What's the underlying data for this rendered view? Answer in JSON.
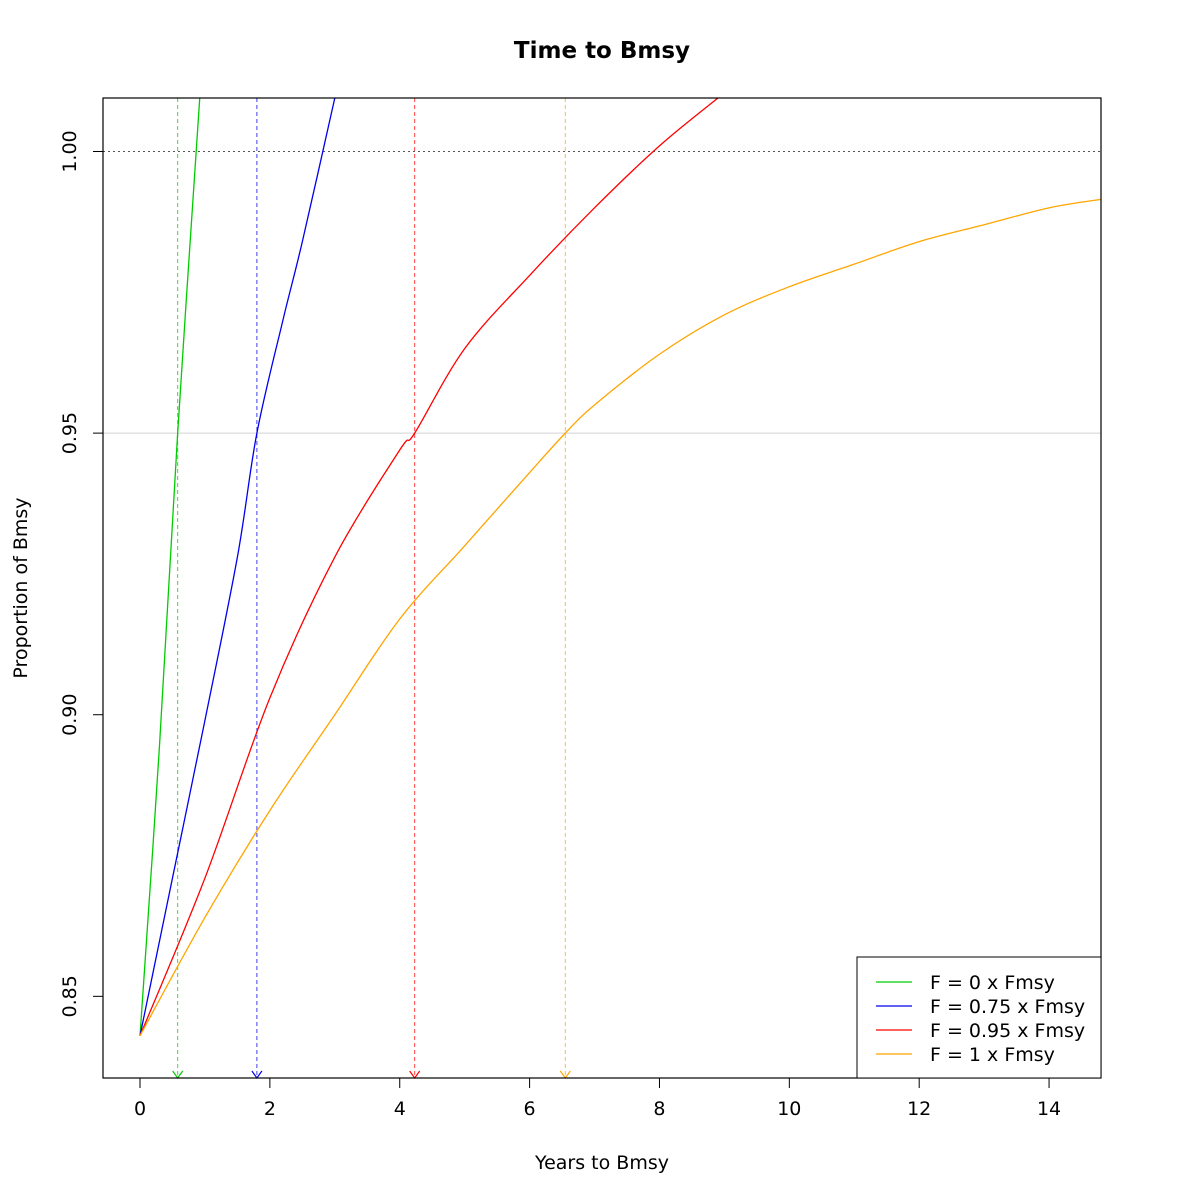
{
  "chart_data": {
    "type": "line",
    "title": "Time to Bmsy",
    "xlabel": "Years to Bmsy",
    "ylabel": "Proportion of Bmsy",
    "xlim": [
      -0.57,
      14.8
    ],
    "ylim": [
      0.8355,
      1.0095
    ],
    "xticks": [
      0,
      2,
      4,
      6,
      8,
      10,
      12,
      14
    ],
    "yticks": [
      0.85,
      0.9,
      0.95,
      1.0
    ],
    "ytick_labels": [
      "0.85",
      "0.90",
      "0.95",
      "1.00"
    ],
    "reference_lines": [
      {
        "axis": "y",
        "value": 1.0,
        "style": "dotted",
        "color": "#555555"
      },
      {
        "axis": "y",
        "value": 0.95,
        "style": "solid",
        "color": "#d3d3d3"
      }
    ],
    "legend_position": "bottom-right",
    "series": [
      {
        "name": "F = 0 x Fmsy",
        "color": "#00cc00",
        "x": [
          0,
          0.3,
          0.58,
          0.92
        ],
        "y": [
          0.843,
          0.8945,
          0.95,
          1.0095
        ],
        "marker_x": 0.58
      },
      {
        "name": "F = 0.75 x Fmsy",
        "color": "#0000ee",
        "x": [
          0,
          0.5,
          1.0,
          1.5,
          1.8,
          2.2,
          2.5,
          3.0
        ],
        "y": [
          0.843,
          0.871,
          0.899,
          0.928,
          0.95,
          0.97,
          0.984,
          1.0095
        ],
        "marker_x": 1.8
      },
      {
        "name": "F = 0.95 x Fmsy",
        "color": "#ff0000",
        "x": [
          0,
          1,
          2,
          3,
          4,
          4.23,
          5,
          6,
          7,
          8,
          8.9
        ],
        "y": [
          0.843,
          0.871,
          0.903,
          0.928,
          0.947,
          0.95,
          0.965,
          0.978,
          0.99,
          1.001,
          1.0095
        ],
        "marker_x": 4.23
      },
      {
        "name": "F = 1 x Fmsy",
        "color": "#ffa500",
        "x": [
          0,
          1,
          2,
          3,
          4,
          5,
          6,
          6.55,
          7,
          8,
          9,
          10,
          11,
          12,
          13,
          14,
          14.8
        ],
        "y": [
          0.843,
          0.864,
          0.883,
          0.9,
          0.917,
          0.93,
          0.943,
          0.95,
          0.955,
          0.964,
          0.971,
          0.976,
          0.98,
          0.984,
          0.987,
          0.99,
          0.9915
        ],
        "marker_x": 6.55
      }
    ]
  }
}
